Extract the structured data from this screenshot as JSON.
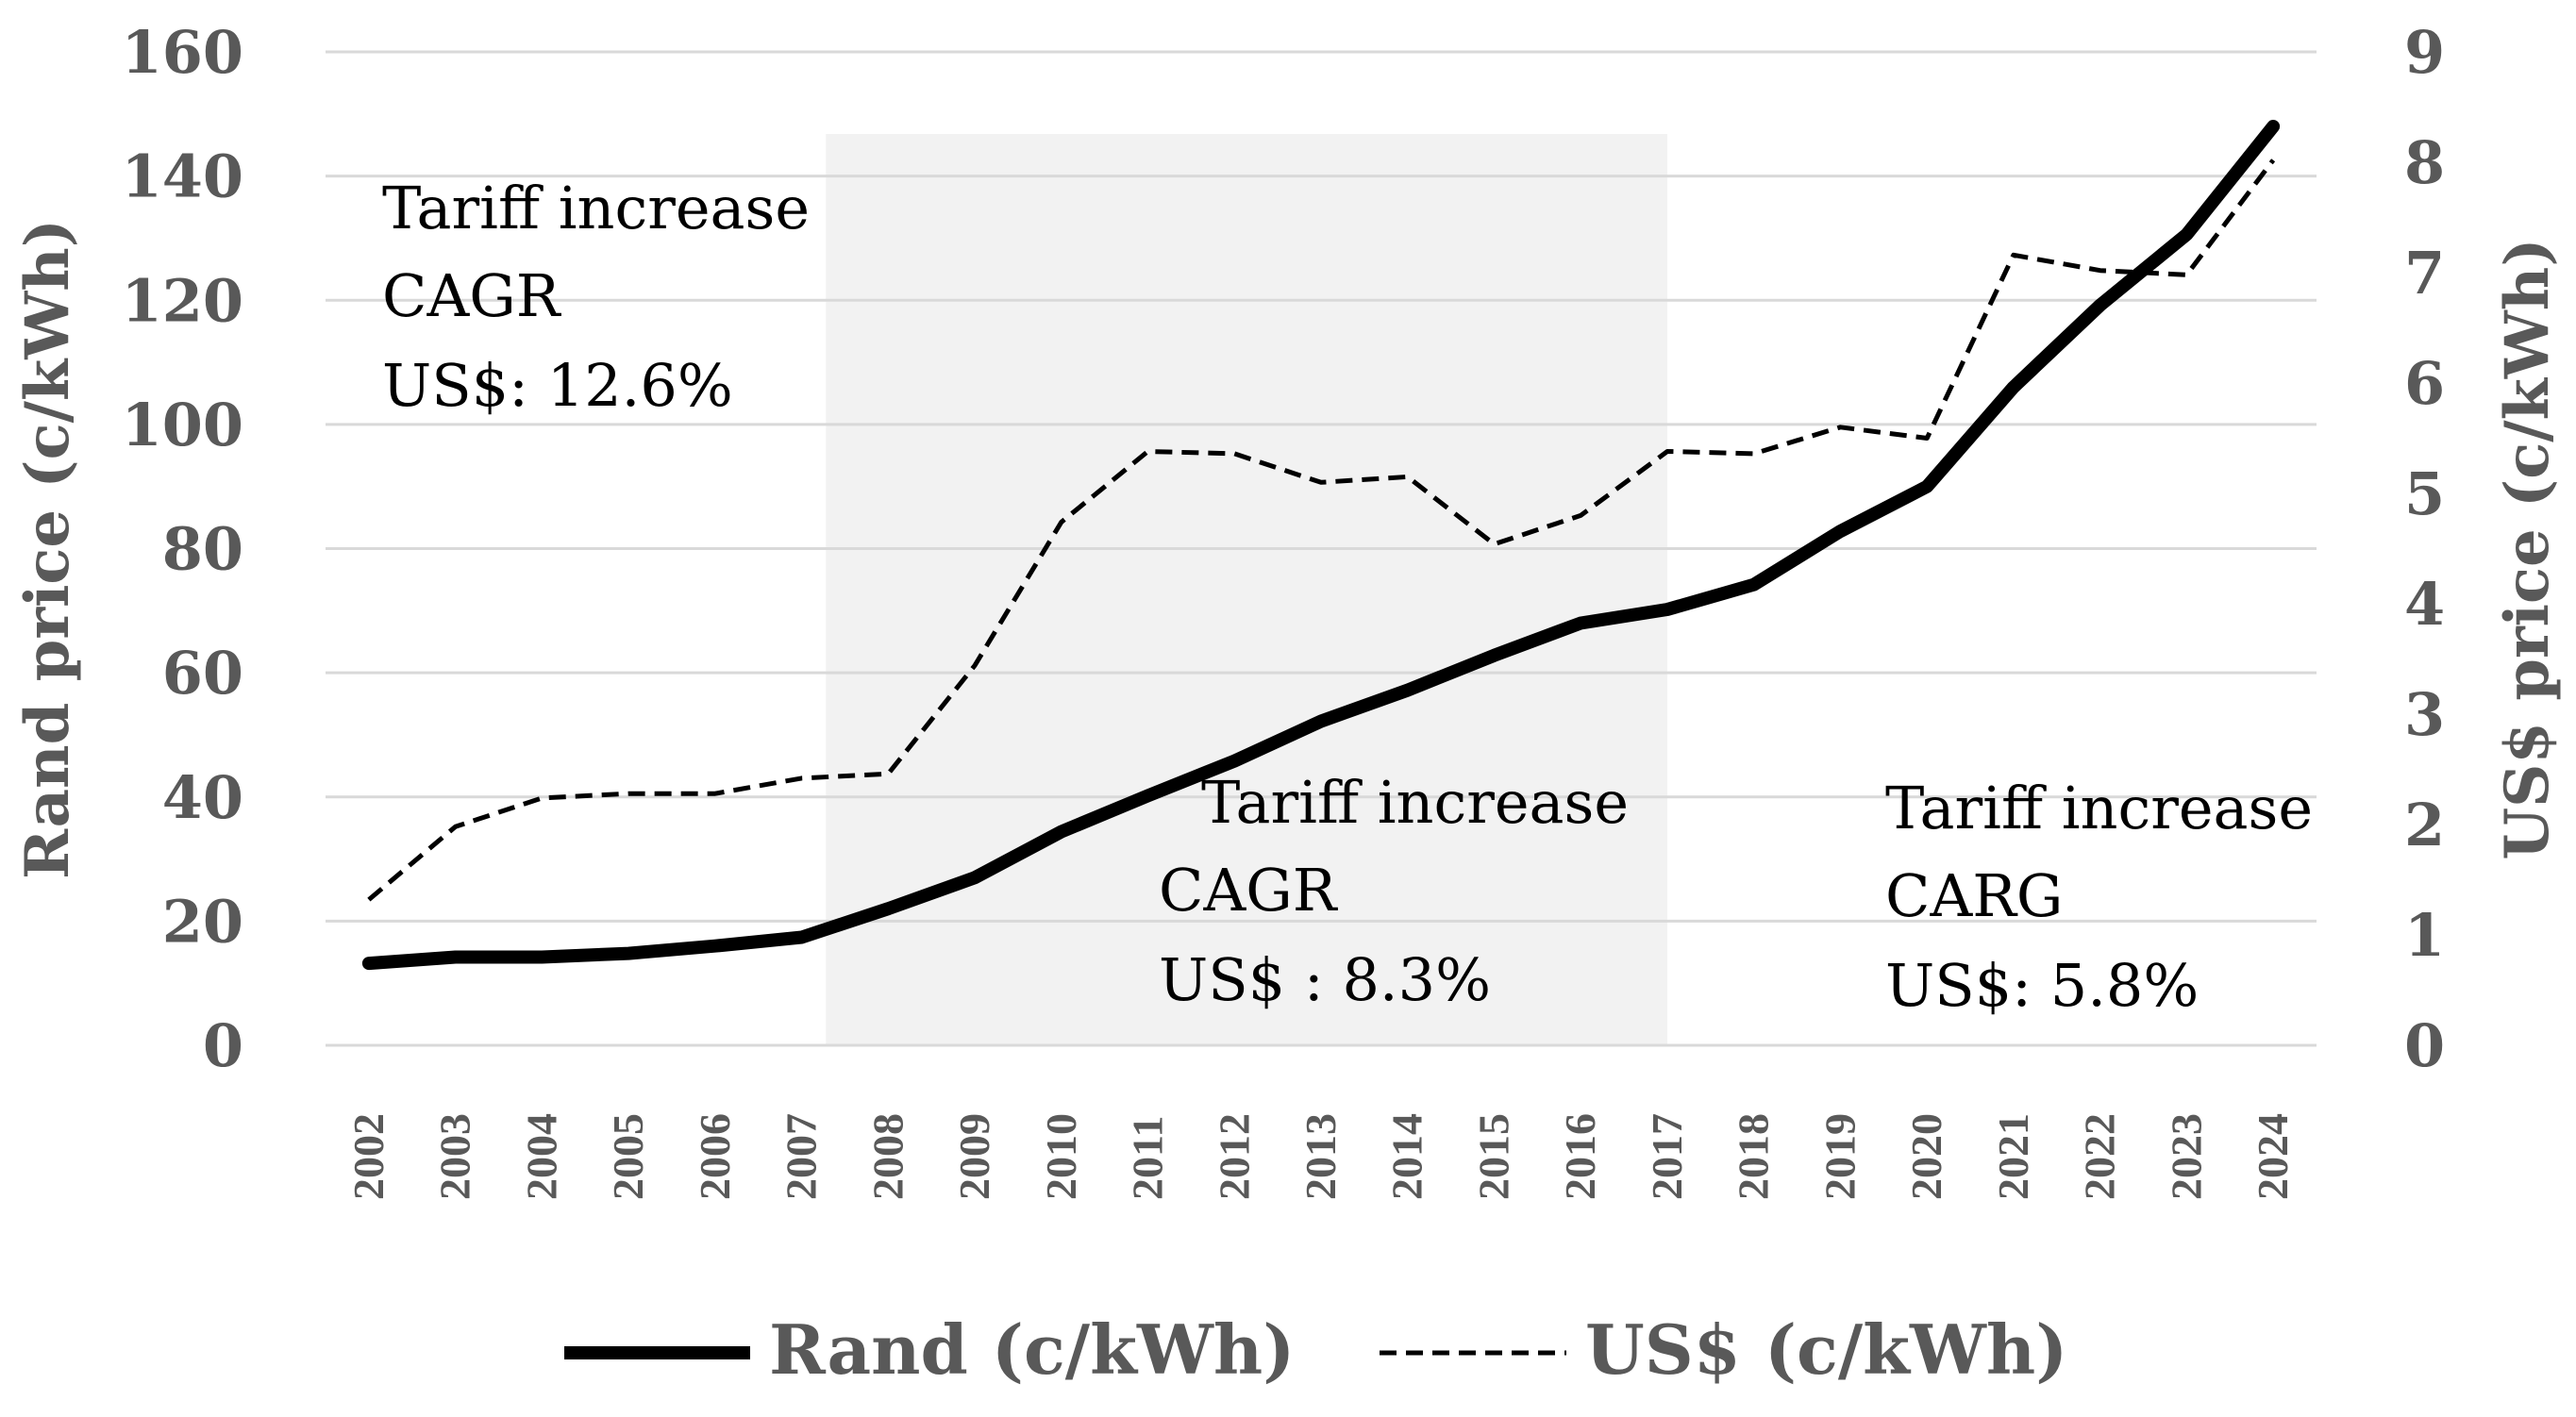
{
  "chart_data": {
    "type": "line",
    "title": "",
    "xlabel": "",
    "ylabel": "Rand price (c/kWh)",
    "y2label": "US$ price (c/kWh)",
    "categories": [
      "2002",
      "2003",
      "2004",
      "2005",
      "2006",
      "2007",
      "2008",
      "2009",
      "2010",
      "2011",
      "2012",
      "2013",
      "2014",
      "2015",
      "2016",
      "2017",
      "2018",
      "2019",
      "2020",
      "2021",
      "2022",
      "2023",
      "2024"
    ],
    "ylim": [
      0,
      160
    ],
    "y2lim": [
      0,
      9
    ],
    "y_ticks": [
      "0",
      "20",
      "40",
      "60",
      "80",
      "100",
      "120",
      "140",
      "160"
    ],
    "y2_ticks": [
      "0",
      "1",
      "2",
      "3",
      "4",
      "5",
      "6",
      "7",
      "8",
      "9"
    ],
    "grid": true,
    "legend_position": "bottom",
    "series": [
      {
        "name": "Rand (c/kWh)",
        "axis": "left",
        "style": "solid",
        "color": "#000000",
        "values": [
          13.2,
          14.2,
          14.2,
          14.8,
          16.0,
          17.4,
          22.0,
          27.0,
          34.4,
          40.2,
          45.8,
          52.2,
          57.2,
          62.8,
          68.0,
          70.2,
          74.2,
          82.8,
          90.0,
          106.0,
          119.2,
          130.6,
          148.0
        ]
      },
      {
        "name": "US$ (c/kWh)",
        "axis": "right",
        "style": "dashed",
        "color": "#000000",
        "values": [
          1.32,
          1.98,
          2.24,
          2.28,
          2.28,
          2.42,
          2.46,
          3.44,
          4.74,
          5.38,
          5.36,
          5.1,
          5.15,
          4.54,
          4.8,
          5.38,
          5.36,
          5.6,
          5.5,
          7.16,
          7.02,
          6.98,
          8.02
        ]
      }
    ],
    "shaded_region": {
      "from": "2007",
      "to": "2017",
      "color": "#f2f2f2"
    },
    "annotations": [
      {
        "lines": [
          "Tariff increase",
          "CAGR",
          "US$: 12.6%"
        ]
      },
      {
        "lines": [
          "Tariff increase",
          "CAGR",
          "US$ : 8.3%"
        ]
      },
      {
        "lines": [
          "Tariff increase",
          "CARG",
          "US$: 5.8%"
        ]
      }
    ]
  }
}
